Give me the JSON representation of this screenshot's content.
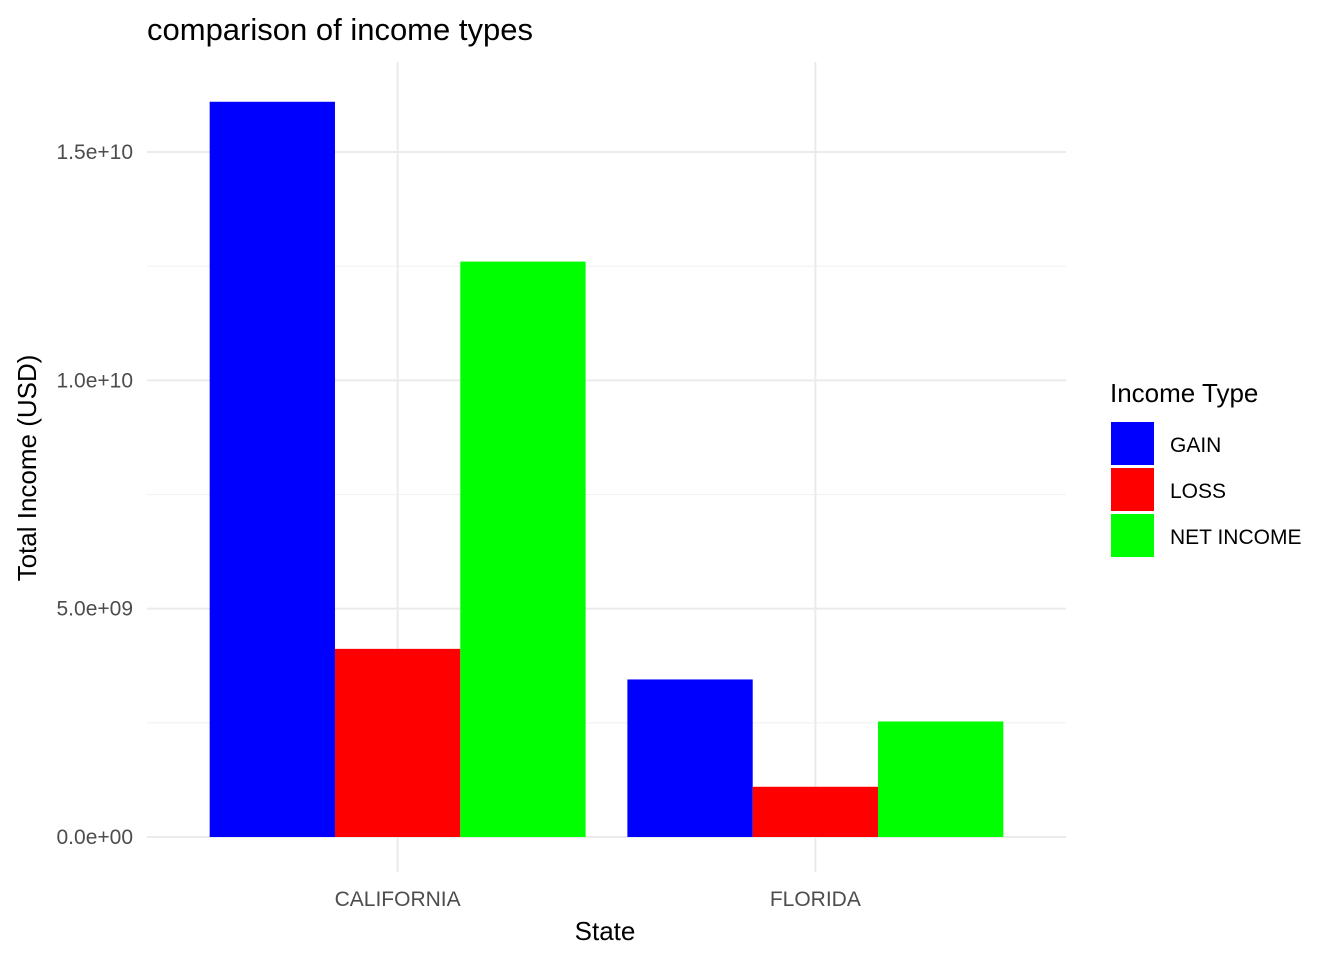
{
  "chart_data": {
    "type": "bar",
    "title": "comparison of income types",
    "xlabel": "State",
    "ylabel": "Total Income (USD)",
    "categories": [
      "CALIFORNIA",
      "FLORIDA"
    ],
    "series": [
      {
        "name": "GAIN",
        "color": "#0000ff",
        "values": [
          16100000000,
          3450000000
        ]
      },
      {
        "name": "LOSS",
        "color": "#ff0000",
        "values": [
          4120000000,
          1100000000
        ]
      },
      {
        "name": "NET INCOME",
        "color": "#00ff00",
        "values": [
          12600000000,
          2530000000
        ]
      }
    ],
    "yticks": [
      {
        "value": 0,
        "label": "0.0e+00"
      },
      {
        "value": 5000000000,
        "label": "5.0e+09"
      },
      {
        "value": 10000000000,
        "label": "1.0e+10"
      },
      {
        "value": 15000000000,
        "label": "1.5e+10"
      }
    ],
    "yminor": [
      2500000000,
      7500000000,
      12500000000
    ],
    "ylim": [
      0,
      17000000000
    ],
    "grid": true,
    "legend": {
      "title": "Income Type",
      "position": "right"
    }
  }
}
